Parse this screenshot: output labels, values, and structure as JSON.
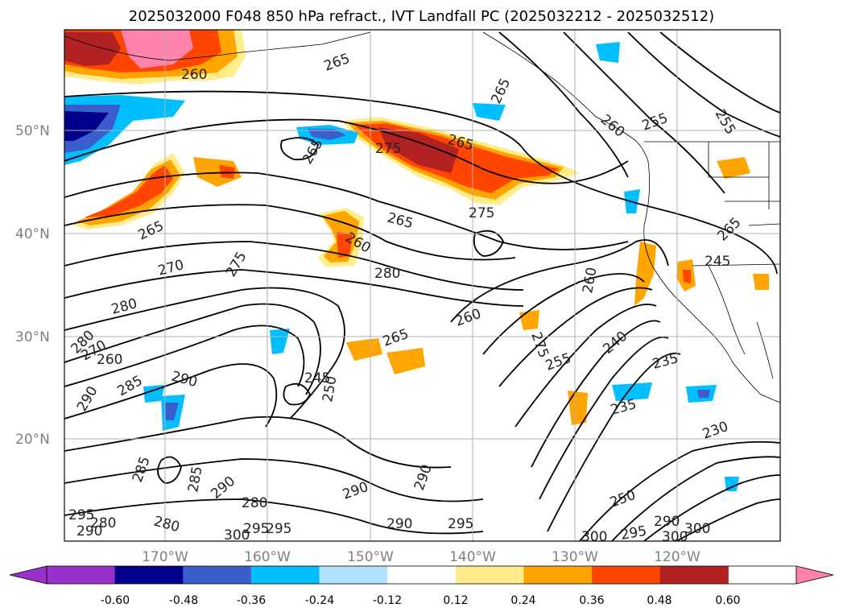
{
  "title": "2025032000 F048 850 hPa refract., IVT Landfall PC (2025032212 - 2025032512)",
  "map": {
    "lat_labels": [
      "50°N",
      "40°N",
      "30°N",
      "20°N"
    ],
    "lon_labels": [
      "170°W",
      "160°W",
      "150°W",
      "140°W",
      "130°W",
      "120°W"
    ],
    "contour_labels": [
      "260",
      "265",
      "265",
      "260",
      "255",
      "255",
      "265",
      "275",
      "265",
      "265",
      "275",
      "265",
      "260",
      "270",
      "275",
      "280",
      "280",
      "260",
      "265",
      "245",
      "265",
      "260",
      "275",
      "240",
      "235",
      "235",
      "280",
      "270",
      "260",
      "255",
      "290",
      "285",
      "290",
      "245",
      "250",
      "290",
      "290",
      "280",
      "290",
      "295",
      "230",
      "285",
      "285",
      "280",
      "280",
      "300",
      "295",
      "290",
      "295",
      "250",
      "290",
      "300",
      "300",
      "295",
      "290",
      "300",
      "295"
    ]
  },
  "colorbar": {
    "ticks": [
      "-0.60",
      "-0.48",
      "-0.36",
      "-0.24",
      "-0.12",
      "0.12",
      "0.24",
      "0.36",
      "0.48",
      "0.60"
    ],
    "colors": [
      "#9932cc",
      "#00008b",
      "#3a5fcd",
      "#00bfff",
      "#b0e2ff",
      "#ffffff",
      "#ffec8b",
      "#ffa500",
      "#ff4500",
      "#b22222",
      "#ff82ab"
    ]
  }
}
